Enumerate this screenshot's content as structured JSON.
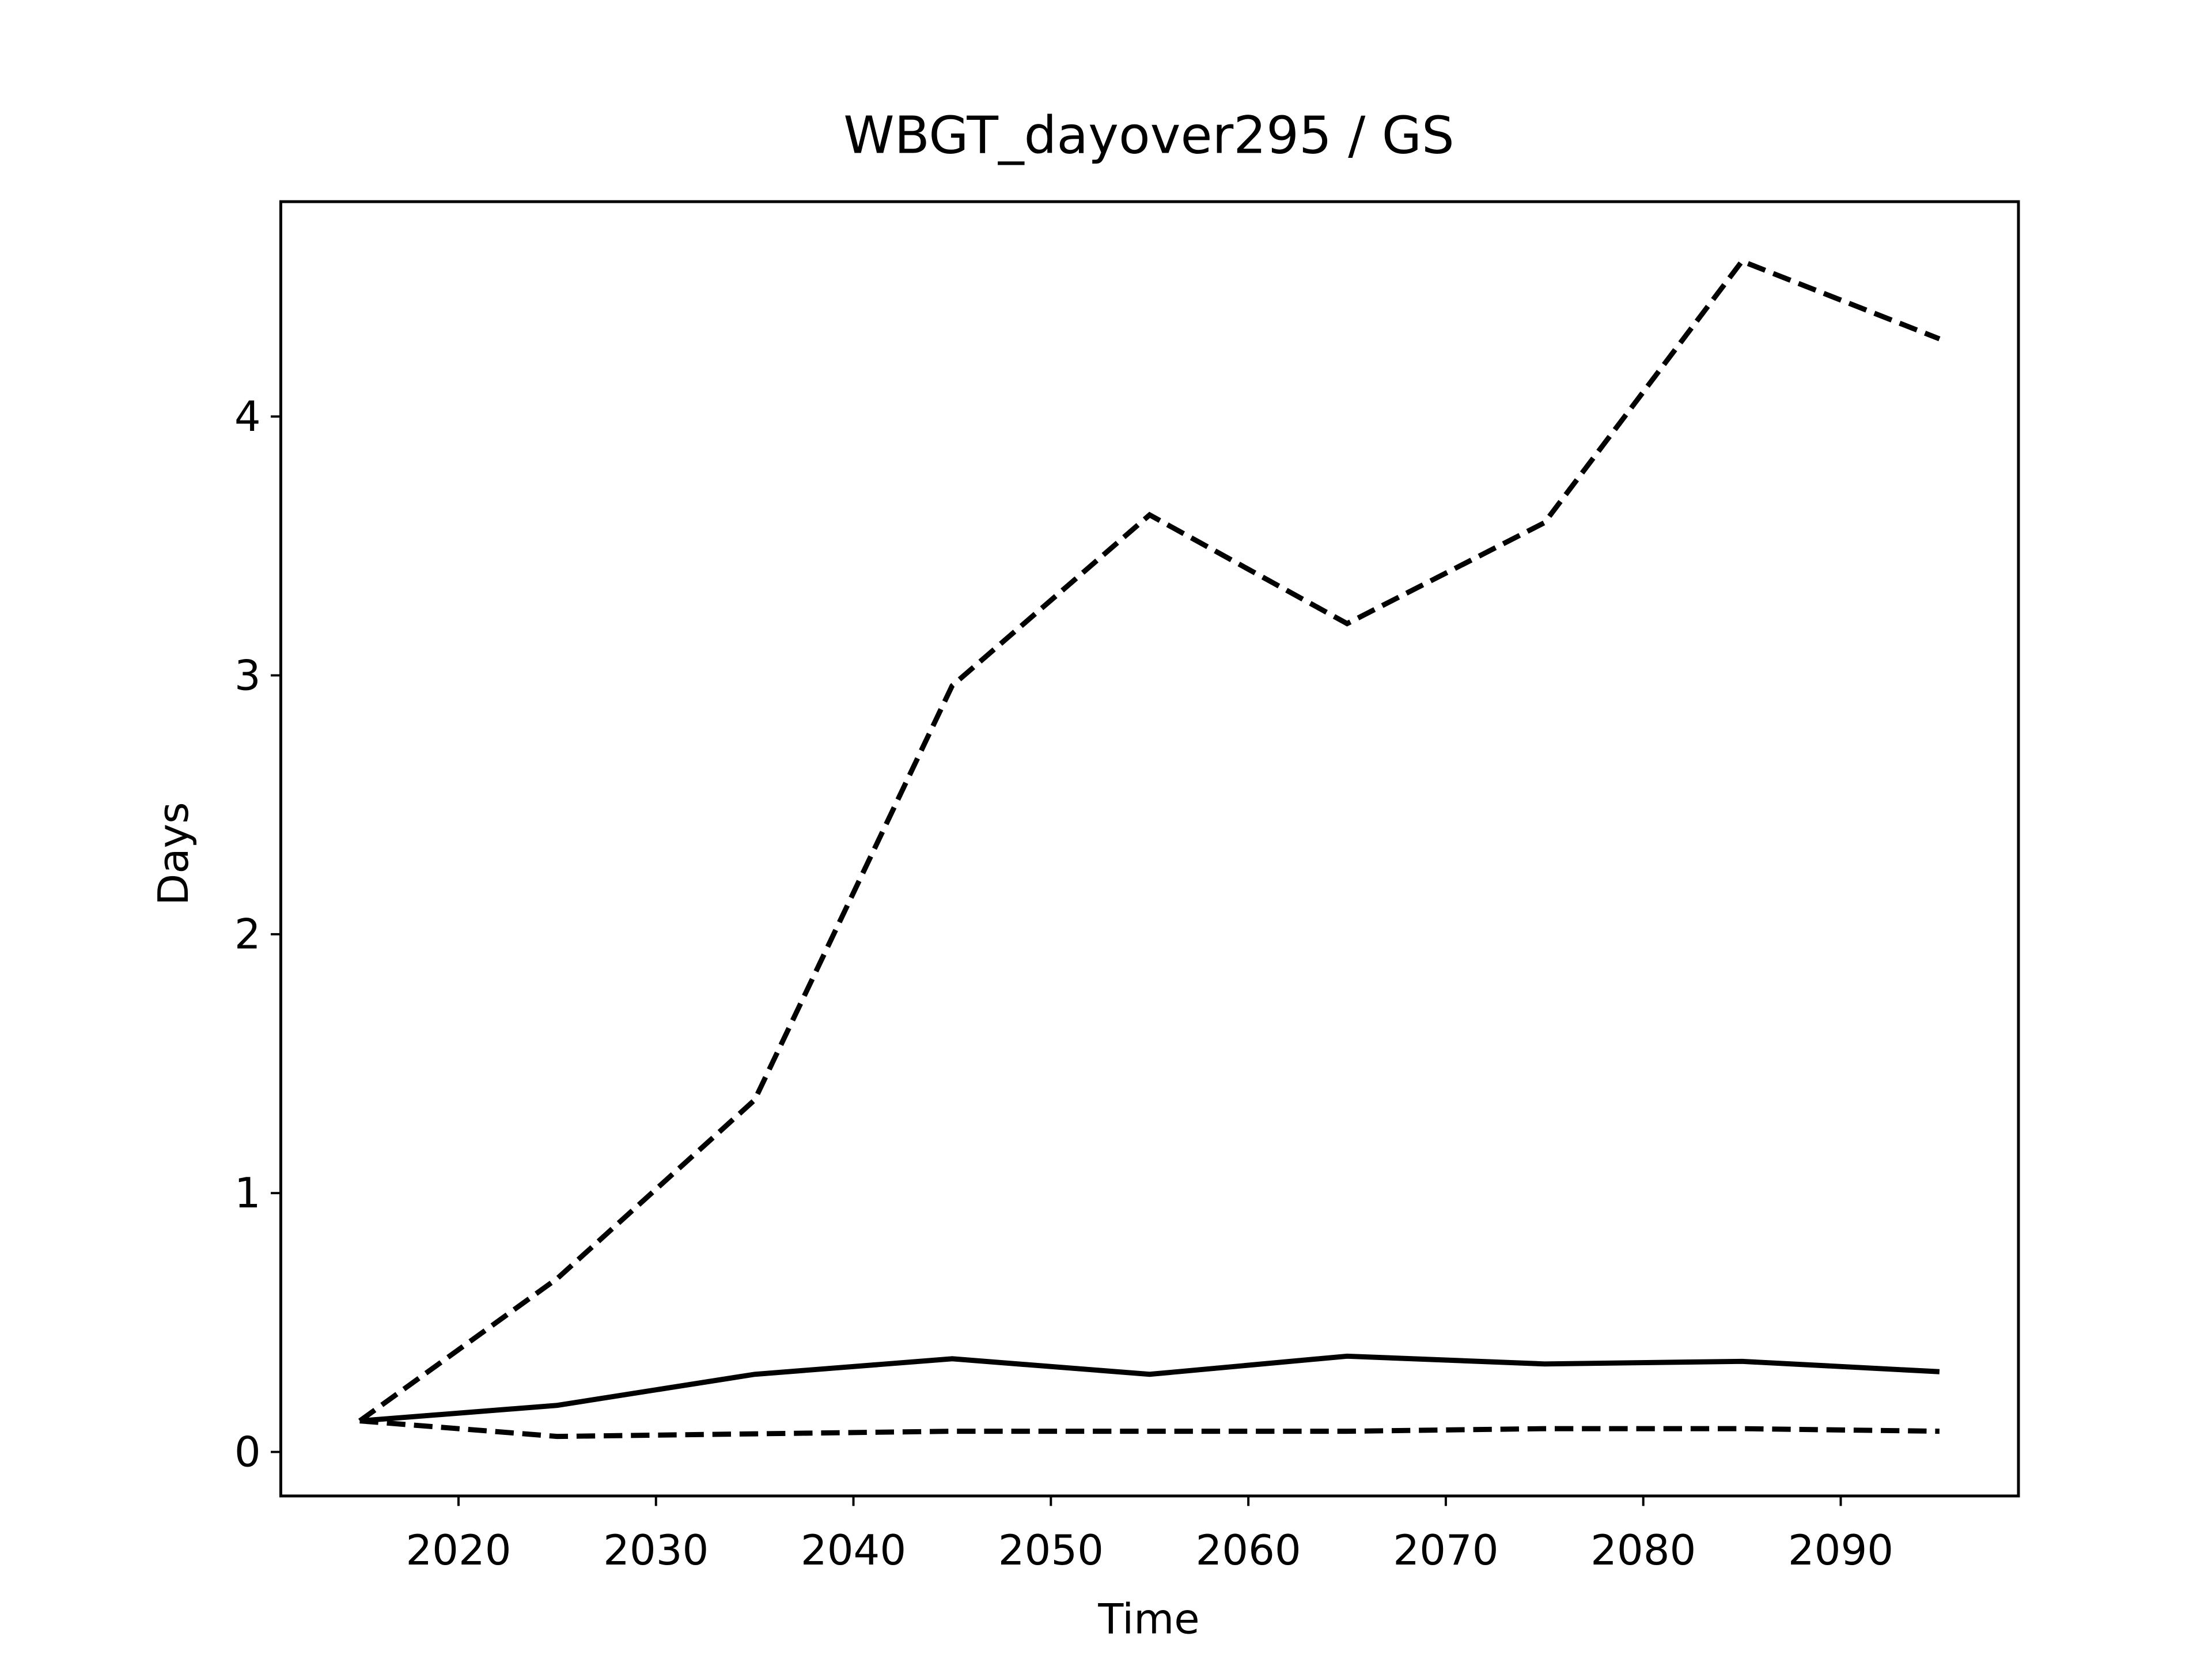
{
  "chart_data": {
    "type": "line",
    "title": "WBGT_dayover295 / GS",
    "xlabel": "Time",
    "ylabel": "Days",
    "x": [
      2015,
      2025,
      2035,
      2045,
      2055,
      2065,
      2075,
      2085,
      2095
    ],
    "series": [
      {
        "color": "#000000",
        "dash": "dashed",
        "values": [
          0.12,
          0.67,
          1.36,
          2.96,
          3.62,
          3.2,
          3.59,
          4.6,
          4.3
        ]
      },
      {
        "color": "#000000",
        "dash": "solid",
        "values": [
          0.12,
          0.18,
          0.3,
          0.36,
          0.3,
          0.37,
          0.34,
          0.35,
          0.31
        ]
      },
      {
        "color": "#000000",
        "dash": "dashed",
        "values": [
          0.12,
          0.06,
          0.07,
          0.08,
          0.08,
          0.08,
          0.09,
          0.09,
          0.08
        ]
      }
    ],
    "xlim": [
      2011,
      2099
    ],
    "xticks": [
      2020,
      2030,
      2040,
      2050,
      2060,
      2070,
      2080,
      2090
    ],
    "ylim": [
      -0.17,
      4.83
    ],
    "yticks": [
      0,
      1,
      2,
      3,
      4
    ],
    "grid": false
  }
}
